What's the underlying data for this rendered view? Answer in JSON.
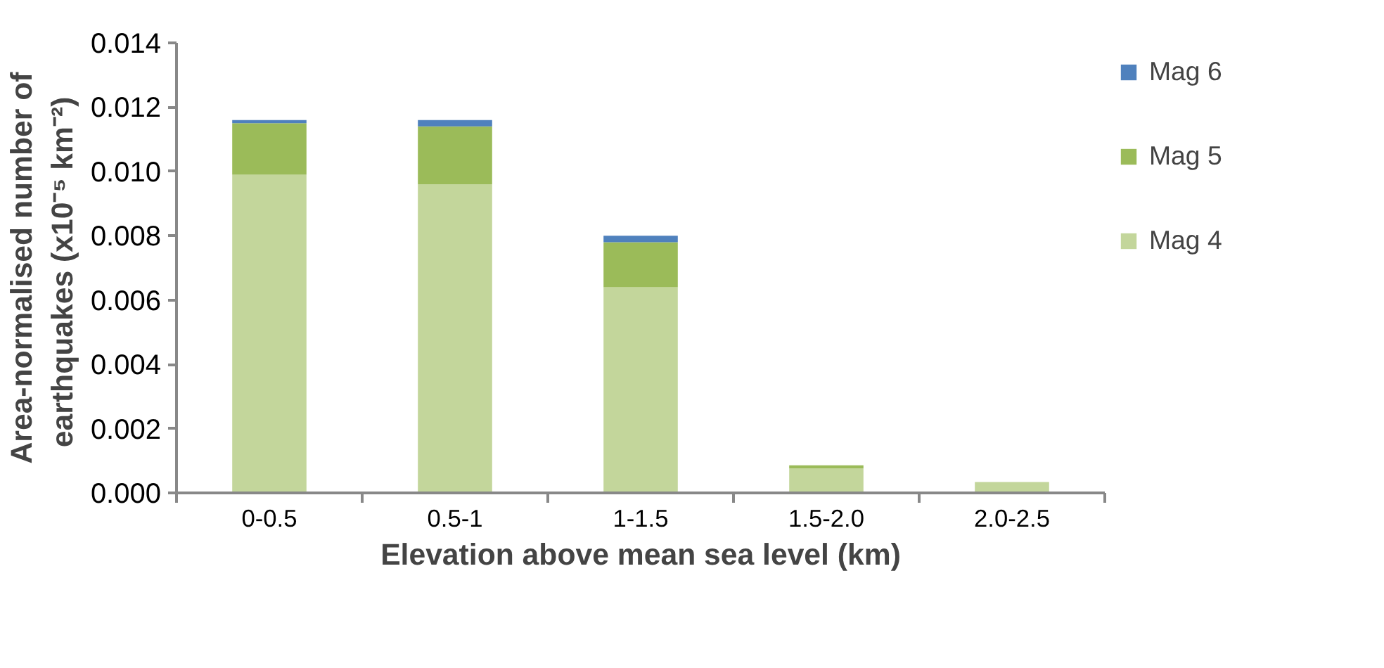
{
  "chart_data": {
    "type": "bar",
    "stacked": true,
    "xlabel": "Elevation above mean sea level (km)",
    "ylabel": "Area-normalised number of earthquakes  (x10⁻⁵ km⁻²)",
    "categories": [
      "0-0.5",
      "0.5-1",
      "1-1.5",
      "1.5-2.0",
      "2.0-2.5"
    ],
    "series": [
      {
        "name": "Mag 4",
        "color": "#c3d69b",
        "values": [
          0.0099,
          0.0096,
          0.0064,
          0.00076,
          0.00034
        ]
      },
      {
        "name": "Mag 5",
        "color": "#9bbb59",
        "values": [
          0.0016,
          0.0018,
          0.0014,
          0.0001,
          0.0
        ]
      },
      {
        "name": "Mag 6",
        "color": "#4f81bd",
        "values": [
          0.0001,
          0.0002,
          0.0002,
          0.0,
          0.0
        ]
      }
    ],
    "ylim": [
      0,
      0.014
    ],
    "yticks": [
      {
        "value": 0,
        "label": "0.000"
      },
      {
        "value": 0.002,
        "label": "0.002"
      },
      {
        "value": 0.004,
        "label": "0.004"
      },
      {
        "value": 0.006,
        "label": "0.006"
      },
      {
        "value": 0.008,
        "label": "0.008"
      },
      {
        "value": 0.01,
        "label": "0.010"
      },
      {
        "value": 0.012,
        "label": "0.012"
      },
      {
        "value": 0.014,
        "label": "0.014"
      }
    ],
    "grid": false,
    "legend": "right"
  }
}
